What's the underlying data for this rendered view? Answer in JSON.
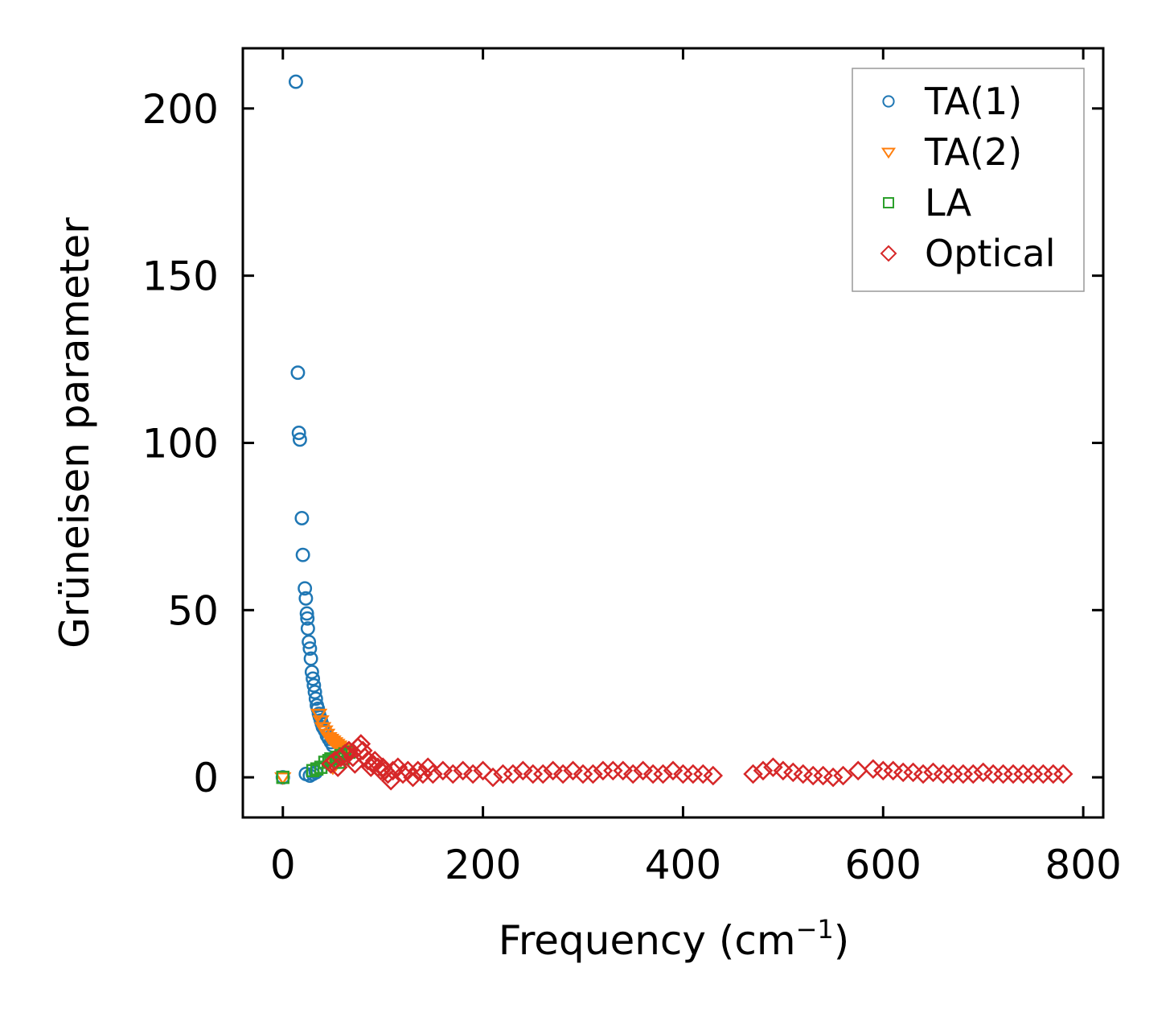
{
  "chart_data": {
    "type": "scatter",
    "xlabel": "Frequency (cm",
    "xlabel_superscript": "−1",
    "xlabel_suffix": ")",
    "ylabel": "Grüneisen parameter",
    "xlim": [
      -40,
      820
    ],
    "ylim": [
      -12,
      218
    ],
    "xticks": [
      0,
      200,
      400,
      600,
      800
    ],
    "yticks": [
      0,
      50,
      100,
      150,
      200
    ],
    "grid": false,
    "legend_position": "top-right",
    "series": [
      {
        "name": "TA(1)",
        "marker": "circle",
        "color": "#1f77b4",
        "points": [
          [
            0,
            0
          ],
          [
            13,
            208
          ],
          [
            15,
            121
          ],
          [
            16,
            103
          ],
          [
            17,
            101
          ],
          [
            19,
            77.5
          ],
          [
            20,
            66.5
          ],
          [
            22,
            56.5
          ],
          [
            23,
            53.5
          ],
          [
            24,
            49
          ],
          [
            24.5,
            47.5
          ],
          [
            25,
            44.5
          ],
          [
            26,
            40.5
          ],
          [
            27,
            38.5
          ],
          [
            28,
            35.5
          ],
          [
            29,
            31.5
          ],
          [
            30,
            29.5
          ],
          [
            31,
            27.5
          ],
          [
            32,
            25.5
          ],
          [
            33,
            23.5
          ],
          [
            34,
            21.5
          ],
          [
            35,
            20.5
          ],
          [
            36,
            19
          ],
          [
            37,
            18
          ],
          [
            38,
            17
          ],
          [
            39,
            16
          ],
          [
            40,
            15
          ],
          [
            42,
            14
          ],
          [
            44,
            12.5
          ],
          [
            46,
            11.5
          ],
          [
            48,
            10.5
          ],
          [
            50,
            9.5
          ],
          [
            23,
            1
          ],
          [
            27,
            0.5
          ],
          [
            30,
            1
          ],
          [
            33,
            1.5
          ]
        ]
      },
      {
        "name": "TA(2)",
        "marker": "triangle-down",
        "color": "#ff7f0e",
        "points": [
          [
            0,
            0
          ],
          [
            36,
            19
          ],
          [
            38,
            17
          ],
          [
            40,
            15
          ],
          [
            42,
            14
          ],
          [
            44,
            13
          ],
          [
            46,
            12
          ],
          [
            48,
            11.5
          ],
          [
            50,
            11
          ],
          [
            52,
            10.5
          ],
          [
            54,
            10
          ],
          [
            56,
            9.5
          ],
          [
            58,
            9
          ],
          [
            60,
            8.5
          ],
          [
            62,
            8
          ],
          [
            64,
            7.5
          ],
          [
            66,
            7
          ],
          [
            50,
            3
          ],
          [
            53,
            4
          ],
          [
            56,
            5
          ]
        ]
      },
      {
        "name": "LA",
        "marker": "square",
        "color": "#2ca02c",
        "points": [
          [
            0,
            0
          ],
          [
            30,
            2
          ],
          [
            34,
            2.5
          ],
          [
            38,
            3
          ],
          [
            42,
            4.5
          ],
          [
            46,
            5
          ],
          [
            50,
            5.5
          ],
          [
            54,
            6
          ],
          [
            58,
            6.5
          ],
          [
            62,
            7
          ],
          [
            66,
            7.5
          ],
          [
            48,
            5.5
          ],
          [
            56,
            4.5
          ],
          [
            60,
            5.5
          ]
        ]
      },
      {
        "name": "Optical",
        "marker": "diamond",
        "color": "#d62728",
        "points": [
          [
            48,
            4
          ],
          [
            52,
            5
          ],
          [
            55,
            3
          ],
          [
            58,
            6
          ],
          [
            62,
            7
          ],
          [
            66,
            8
          ],
          [
            70,
            6
          ],
          [
            72,
            4
          ],
          [
            75,
            9
          ],
          [
            78,
            10
          ],
          [
            80,
            8
          ],
          [
            82,
            6
          ],
          [
            85,
            5
          ],
          [
            88,
            3
          ],
          [
            90,
            4
          ],
          [
            92,
            5
          ],
          [
            95,
            3
          ],
          [
            98,
            2
          ],
          [
            100,
            3
          ],
          [
            102,
            2
          ],
          [
            105,
            1
          ],
          [
            108,
            -1
          ],
          [
            110,
            2
          ],
          [
            115,
            3
          ],
          [
            120,
            1
          ],
          [
            125,
            2
          ],
          [
            130,
            0
          ],
          [
            135,
            2
          ],
          [
            140,
            1
          ],
          [
            145,
            3
          ],
          [
            150,
            1
          ],
          [
            160,
            2
          ],
          [
            170,
            1
          ],
          [
            180,
            2
          ],
          [
            190,
            1
          ],
          [
            200,
            2
          ],
          [
            210,
            0
          ],
          [
            220,
            1
          ],
          [
            230,
            1
          ],
          [
            240,
            2
          ],
          [
            250,
            1
          ],
          [
            260,
            1
          ],
          [
            270,
            2
          ],
          [
            280,
            1
          ],
          [
            290,
            2
          ],
          [
            300,
            1
          ],
          [
            310,
            1
          ],
          [
            320,
            2
          ],
          [
            330,
            2
          ],
          [
            340,
            2
          ],
          [
            350,
            1
          ],
          [
            360,
            2
          ],
          [
            370,
            1
          ],
          [
            380,
            1
          ],
          [
            390,
            2
          ],
          [
            400,
            1
          ],
          [
            410,
            1
          ],
          [
            420,
            1
          ],
          [
            430,
            0.5
          ],
          [
            470,
            1
          ],
          [
            480,
            2
          ],
          [
            490,
            3
          ],
          [
            500,
            2
          ],
          [
            510,
            1.5
          ],
          [
            520,
            1
          ],
          [
            530,
            0.5
          ],
          [
            540,
            0.5
          ],
          [
            550,
            0
          ],
          [
            560,
            0.5
          ],
          [
            575,
            2
          ],
          [
            590,
            2.5
          ],
          [
            600,
            2
          ],
          [
            610,
            2
          ],
          [
            620,
            1.5
          ],
          [
            630,
            1.5
          ],
          [
            640,
            1
          ],
          [
            650,
            1.5
          ],
          [
            660,
            1
          ],
          [
            670,
            1
          ],
          [
            680,
            1
          ],
          [
            690,
            1
          ],
          [
            700,
            1.5
          ],
          [
            710,
            1
          ],
          [
            720,
            1
          ],
          [
            730,
            1
          ],
          [
            740,
            1
          ],
          [
            750,
            1
          ],
          [
            760,
            1
          ],
          [
            770,
            1
          ],
          [
            780,
            1
          ]
        ]
      }
    ]
  }
}
